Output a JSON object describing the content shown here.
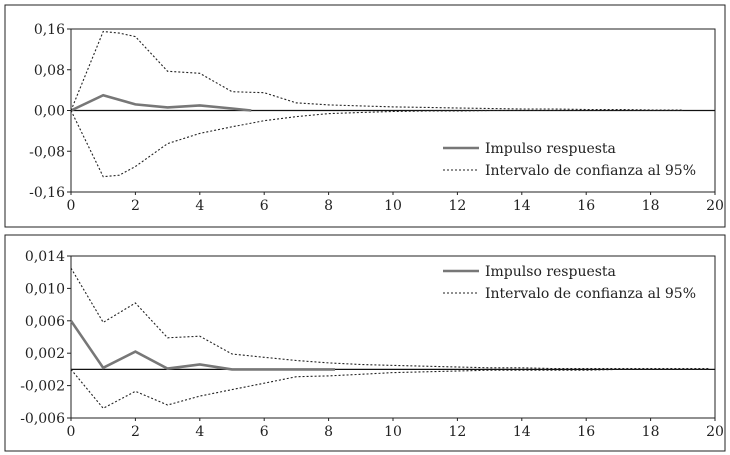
{
  "chart_data": [
    {
      "type": "line",
      "title": "",
      "xlabel": "",
      "ylabel": "",
      "xlim": [
        0,
        20
      ],
      "ylim": [
        -0.16,
        0.16
      ],
      "x_ticks": [
        "0",
        "2",
        "4",
        "6",
        "8",
        "10",
        "12",
        "14",
        "16",
        "18",
        "20"
      ],
      "y_ticks": [
        {
          "value": 0.16,
          "label": "0,16"
        },
        {
          "value": 0.08,
          "label": "0,08"
        },
        {
          "value": 0.0,
          "label": "0,00"
        },
        {
          "value": -0.08,
          "label": "-0,08"
        },
        {
          "value": -0.16,
          "label": "-0,16"
        }
      ],
      "zero_line": true,
      "grid": false,
      "legend_position": "bottom-right",
      "series": [
        {
          "name": "Impulso respuesta",
          "style": "solid",
          "color": "#777777",
          "x": [
            0,
            1,
            2,
            3,
            4,
            5,
            5.6
          ],
          "y": [
            0.0,
            0.03,
            0.012,
            0.006,
            0.01,
            0.004,
            0.0
          ]
        },
        {
          "name": "Intervalo de confianza al 95%",
          "style": "dotted",
          "color": "#222222",
          "x": [
            0,
            1,
            1.5,
            2,
            3,
            4,
            5,
            6,
            7,
            8,
            9,
            10,
            11,
            12,
            13,
            14,
            15,
            16,
            17,
            18,
            19
          ],
          "y": [
            0.0,
            0.155,
            0.152,
            0.145,
            0.077,
            0.073,
            0.037,
            0.035,
            0.015,
            0.011,
            0.009,
            0.007,
            0.006,
            0.005,
            0.004,
            0.003,
            0.003,
            0.002,
            0.002,
            0.001,
            0.001
          ]
        },
        {
          "name": "",
          "style": "dotted",
          "color": "#222222",
          "x": [
            0,
            1,
            1.5,
            2,
            3,
            4,
            5,
            6,
            7,
            8,
            9,
            10,
            11,
            12,
            13,
            14,
            15,
            16,
            17,
            18,
            19
          ],
          "y": [
            0.0,
            -0.13,
            -0.127,
            -0.11,
            -0.065,
            -0.045,
            -0.032,
            -0.02,
            -0.012,
            -0.006,
            -0.004,
            -0.002,
            -0.001,
            -0.001,
            0.0,
            0.0,
            0.0,
            0.0,
            0.0,
            0.0,
            0.0
          ]
        }
      ]
    },
    {
      "type": "line",
      "title": "",
      "xlabel": "",
      "ylabel": "",
      "xlim": [
        0,
        20
      ],
      "ylim": [
        -0.006,
        0.014
      ],
      "x_ticks": [
        "0",
        "2",
        "4",
        "6",
        "8",
        "10",
        "12",
        "14",
        "16",
        "18",
        "20"
      ],
      "y_ticks": [
        {
          "value": 0.014,
          "label": "0,014"
        },
        {
          "value": 0.01,
          "label": "0,010"
        },
        {
          "value": 0.006,
          "label": "0,006"
        },
        {
          "value": 0.002,
          "label": "0,002"
        },
        {
          "value": -0.002,
          "label": "-0,002"
        },
        {
          "value": -0.006,
          "label": "-0,006"
        }
      ],
      "zero_line": true,
      "grid": false,
      "legend_position": "top-right",
      "series": [
        {
          "name": "Impulso respuesta",
          "style": "solid",
          "color": "#777777",
          "x": [
            0,
            1,
            2,
            3,
            4,
            5,
            6,
            7,
            8.2
          ],
          "y": [
            0.006,
            0.0002,
            0.0022,
            0.0001,
            0.0006,
            0.0,
            0.0,
            0.0,
            0.0
          ]
        },
        {
          "name": "Intervalo de confianza al 95%",
          "style": "dotted",
          "color": "#222222",
          "x": [
            0,
            1,
            2,
            3,
            4,
            5,
            6,
            7,
            8,
            9,
            10,
            11,
            12,
            13,
            14,
            15,
            16,
            17,
            18,
            19,
            19.8
          ],
          "y": [
            0.0125,
            0.0058,
            0.0082,
            0.0039,
            0.0041,
            0.0019,
            0.0015,
            0.0011,
            0.0008,
            0.0006,
            0.0005,
            0.0004,
            0.0003,
            0.0002,
            0.0002,
            0.0001,
            0.0001,
            0.0001,
            0.0001,
            0.0001,
            0.0001
          ]
        },
        {
          "name": "",
          "style": "dotted",
          "color": "#222222",
          "x": [
            0,
            1,
            2,
            3,
            4,
            5,
            6,
            7,
            8,
            9,
            10,
            11,
            12,
            13,
            14,
            15,
            16,
            17,
            18,
            19,
            19.8
          ],
          "y": [
            0.0,
            -0.0048,
            -0.0027,
            -0.0044,
            -0.0033,
            -0.0025,
            -0.0017,
            -0.0009,
            -0.0008,
            -0.0006,
            -0.0004,
            -0.0003,
            -0.0002,
            -0.0001,
            -0.0001,
            -0.0001,
            -0.0001,
            0.0,
            0.0,
            0.0,
            0.0
          ]
        }
      ]
    }
  ]
}
